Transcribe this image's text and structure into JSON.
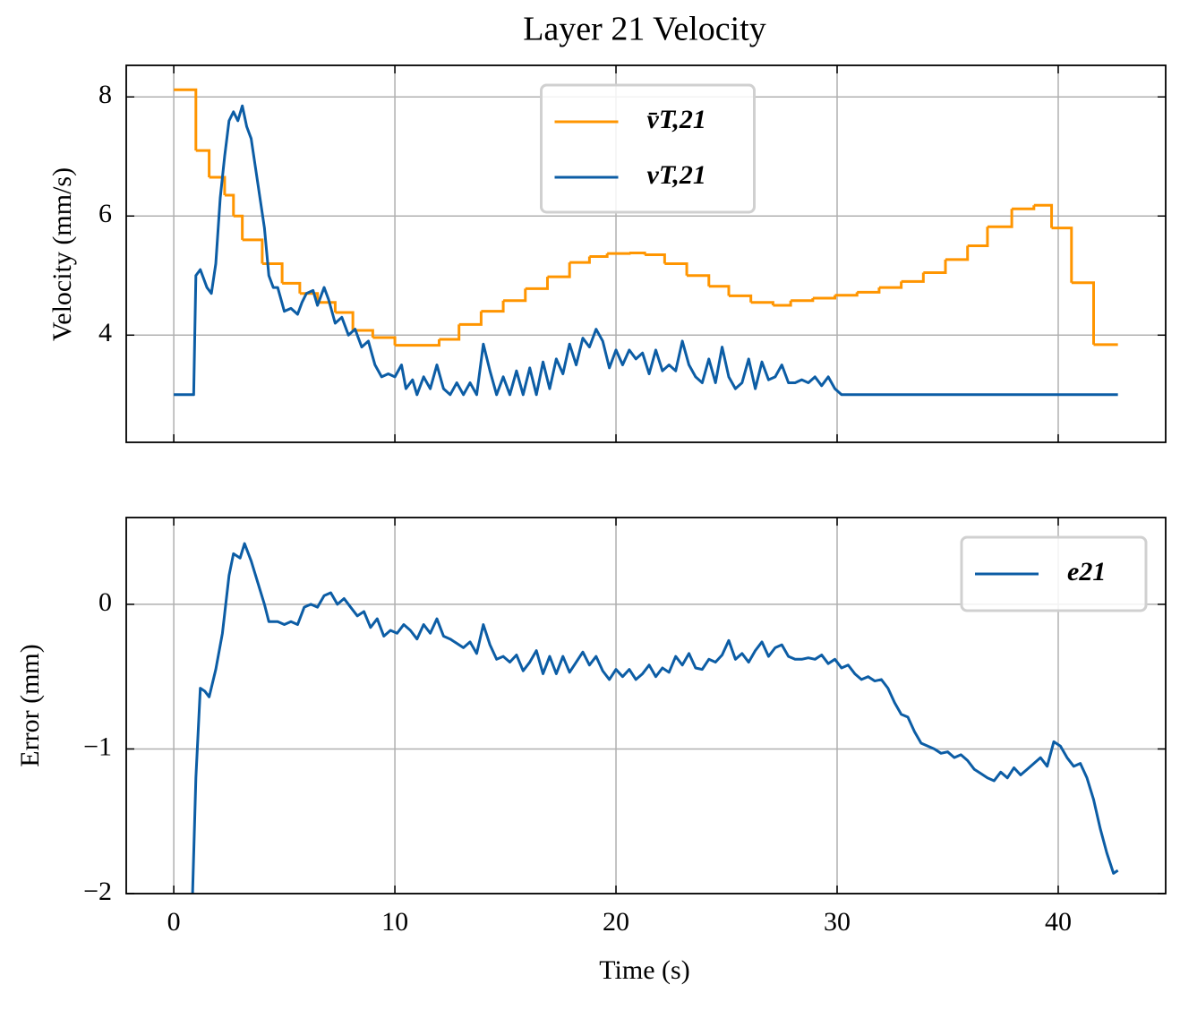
{
  "chart_data": [
    {
      "type": "line",
      "title": "Layer 21 Velocity",
      "ylabel": "Velocity (mm/s)",
      "xlim": [
        -2.15,
        44.86
      ],
      "ylim": [
        2.2,
        8.53
      ],
      "xticks": [
        0,
        10,
        20,
        30,
        40
      ],
      "yticks": [
        4,
        6,
        8
      ],
      "grid": true,
      "legend": "upper center",
      "series": [
        {
          "name": "v̄T,21",
          "color": "#ff9500",
          "step": "post",
          "x": [
            0,
            1.0,
            1.6,
            2.3,
            2.7,
            3.1,
            4.0,
            4.9,
            5.7,
            6.5,
            7.3,
            8.1,
            9.0,
            10.0,
            12.0,
            12.9,
            13.9,
            14.9,
            15.9,
            16.9,
            17.9,
            18.8,
            19.6,
            20.6,
            21.3,
            22.2,
            23.2,
            24.2,
            25.1,
            26.1,
            27.1,
            27.9,
            28.9,
            29.9,
            30.9,
            31.9,
            32.9,
            33.9,
            34.9,
            35.9,
            36.8,
            37.9,
            38.9,
            39.7,
            40.6,
            41.6,
            42.7
          ],
          "values": [
            8.12,
            7.1,
            6.65,
            6.35,
            6.0,
            5.6,
            5.2,
            4.87,
            4.7,
            4.55,
            4.38,
            4.08,
            3.96,
            3.83,
            3.93,
            4.18,
            4.4,
            4.58,
            4.78,
            4.98,
            5.22,
            5.32,
            5.37,
            5.38,
            5.35,
            5.2,
            5.0,
            4.82,
            4.66,
            4.55,
            4.5,
            4.58,
            4.62,
            4.67,
            4.72,
            4.8,
            4.9,
            5.05,
            5.27,
            5.5,
            5.82,
            6.12,
            6.18,
            5.8,
            4.88,
            3.84,
            3.84
          ]
        },
        {
          "name": "vT,21",
          "color": "#0c5da5",
          "x": [
            0,
            0.9,
            1.0,
            1.2,
            1.5,
            1.7,
            1.9,
            2.1,
            2.3,
            2.5,
            2.7,
            2.9,
            3.1,
            3.3,
            3.5,
            3.7,
            3.9,
            4.1,
            4.3,
            4.5,
            4.7,
            5.0,
            5.3,
            5.6,
            5.8,
            6.0,
            6.3,
            6.5,
            6.8,
            7.0,
            7.3,
            7.6,
            7.9,
            8.2,
            8.5,
            8.8,
            9.1,
            9.4,
            9.7,
            10.0,
            10.3,
            10.5,
            10.8,
            11.0,
            11.3,
            11.6,
            11.9,
            12.2,
            12.5,
            12.8,
            13.1,
            13.4,
            13.7,
            14.0,
            14.3,
            14.6,
            14.9,
            15.2,
            15.5,
            15.8,
            16.1,
            16.4,
            16.7,
            17.0,
            17.3,
            17.6,
            17.9,
            18.2,
            18.5,
            18.8,
            19.1,
            19.4,
            19.7,
            20.0,
            20.3,
            20.6,
            20.9,
            21.2,
            21.5,
            21.8,
            22.1,
            22.4,
            22.7,
            23.0,
            23.3,
            23.6,
            23.9,
            24.2,
            24.5,
            24.8,
            25.1,
            25.4,
            25.7,
            26.0,
            26.3,
            26.6,
            26.9,
            27.2,
            27.5,
            27.8,
            28.1,
            28.4,
            28.7,
            29.0,
            29.3,
            29.6,
            29.9,
            30.2,
            31.0,
            31.8,
            42.7
          ],
          "values": [
            3.0,
            3.0,
            5.0,
            5.1,
            4.8,
            4.7,
            5.2,
            6.3,
            7.0,
            7.6,
            7.75,
            7.6,
            7.85,
            7.5,
            7.3,
            6.8,
            6.3,
            5.8,
            5.0,
            4.8,
            4.8,
            4.4,
            4.45,
            4.35,
            4.55,
            4.7,
            4.75,
            4.5,
            4.8,
            4.6,
            4.2,
            4.3,
            4.0,
            4.1,
            3.8,
            3.9,
            3.5,
            3.3,
            3.35,
            3.3,
            3.5,
            3.1,
            3.25,
            3.0,
            3.3,
            3.1,
            3.5,
            3.1,
            3.0,
            3.2,
            3.0,
            3.2,
            3.0,
            3.85,
            3.4,
            3.0,
            3.3,
            3.0,
            3.4,
            3.0,
            3.45,
            3.0,
            3.55,
            3.1,
            3.6,
            3.35,
            3.85,
            3.5,
            3.95,
            3.8,
            4.1,
            3.9,
            3.45,
            3.75,
            3.5,
            3.75,
            3.6,
            3.7,
            3.35,
            3.75,
            3.4,
            3.5,
            3.4,
            3.9,
            3.5,
            3.3,
            3.2,
            3.6,
            3.2,
            3.8,
            3.3,
            3.1,
            3.2,
            3.6,
            3.1,
            3.55,
            3.25,
            3.3,
            3.5,
            3.2,
            3.2,
            3.25,
            3.2,
            3.3,
            3.15,
            3.3,
            3.1,
            3.0,
            3.0,
            3.0,
            3.0
          ]
        }
      ]
    },
    {
      "type": "line",
      "xlabel": "Time (s)",
      "ylabel": "Error (mm)",
      "xlim": [
        -2.15,
        44.86
      ],
      "ylim": [
        -2,
        0.6
      ],
      "xticks": [
        0,
        10,
        20,
        30,
        40
      ],
      "yticks": [
        {
          "value": -2,
          "label": "−2"
        },
        {
          "value": -1,
          "label": "−1"
        },
        0
      ],
      "grid": true,
      "legend": "upper right",
      "series": [
        {
          "name": "e21",
          "color": "#0c5da5",
          "x": [
            0.85,
            1.0,
            1.2,
            1.4,
            1.6,
            1.9,
            2.2,
            2.5,
            2.7,
            3.0,
            3.2,
            3.5,
            3.8,
            4.1,
            4.3,
            4.7,
            5.0,
            5.3,
            5.6,
            5.9,
            6.2,
            6.5,
            6.8,
            7.1,
            7.4,
            7.7,
            8.0,
            8.3,
            8.6,
            8.9,
            9.2,
            9.5,
            9.8,
            10.1,
            10.4,
            10.7,
            11.0,
            11.3,
            11.6,
            11.9,
            12.2,
            12.5,
            12.8,
            13.1,
            13.4,
            13.7,
            14.0,
            14.3,
            14.6,
            14.9,
            15.2,
            15.5,
            15.8,
            16.1,
            16.4,
            16.7,
            17.0,
            17.3,
            17.6,
            17.9,
            18.2,
            18.5,
            18.8,
            19.1,
            19.4,
            19.7,
            20.0,
            20.3,
            20.6,
            20.9,
            21.2,
            21.5,
            21.8,
            22.1,
            22.4,
            22.7,
            23.0,
            23.3,
            23.6,
            23.9,
            24.2,
            24.5,
            24.8,
            25.1,
            25.4,
            25.7,
            26.0,
            26.3,
            26.6,
            26.9,
            27.2,
            27.5,
            27.8,
            28.1,
            28.4,
            28.7,
            29.0,
            29.3,
            29.6,
            29.9,
            30.2,
            30.5,
            30.8,
            31.1,
            31.4,
            31.7,
            32.0,
            32.3,
            32.6,
            32.9,
            33.2,
            33.5,
            33.8,
            34.1,
            34.4,
            34.7,
            35.0,
            35.3,
            35.6,
            35.9,
            36.2,
            36.5,
            36.8,
            37.1,
            37.4,
            37.7,
            38.0,
            38.3,
            38.6,
            38.9,
            39.2,
            39.5,
            39.8,
            40.1,
            40.4,
            40.7,
            41.0,
            41.3,
            41.6,
            41.9,
            42.2,
            42.5,
            42.7
          ],
          "values": [
            -2.0,
            -1.2,
            -0.58,
            -0.6,
            -0.64,
            -0.45,
            -0.2,
            0.2,
            0.35,
            0.32,
            0.42,
            0.3,
            0.15,
            0.0,
            -0.12,
            -0.12,
            -0.14,
            -0.12,
            -0.14,
            -0.02,
            0.0,
            -0.02,
            0.06,
            0.08,
            0.0,
            0.04,
            -0.02,
            -0.08,
            -0.05,
            -0.16,
            -0.1,
            -0.22,
            -0.18,
            -0.2,
            -0.14,
            -0.18,
            -0.24,
            -0.14,
            -0.2,
            -0.1,
            -0.22,
            -0.24,
            -0.27,
            -0.3,
            -0.26,
            -0.34,
            -0.14,
            -0.28,
            -0.38,
            -0.36,
            -0.4,
            -0.35,
            -0.46,
            -0.4,
            -0.32,
            -0.48,
            -0.36,
            -0.48,
            -0.36,
            -0.47,
            -0.4,
            -0.33,
            -0.42,
            -0.36,
            -0.46,
            -0.52,
            -0.45,
            -0.5,
            -0.45,
            -0.52,
            -0.48,
            -0.42,
            -0.5,
            -0.44,
            -0.47,
            -0.36,
            -0.42,
            -0.34,
            -0.44,
            -0.45,
            -0.38,
            -0.4,
            -0.35,
            -0.25,
            -0.38,
            -0.34,
            -0.4,
            -0.32,
            -0.26,
            -0.36,
            -0.3,
            -0.28,
            -0.36,
            -0.38,
            -0.38,
            -0.37,
            -0.38,
            -0.35,
            -0.41,
            -0.38,
            -0.44,
            -0.42,
            -0.48,
            -0.52,
            -0.5,
            -0.53,
            -0.52,
            -0.58,
            -0.68,
            -0.76,
            -0.78,
            -0.88,
            -0.96,
            -0.98,
            -1.0,
            -1.03,
            -1.02,
            -1.06,
            -1.04,
            -1.08,
            -1.14,
            -1.17,
            -1.2,
            -1.22,
            -1.16,
            -1.2,
            -1.13,
            -1.18,
            -1.14,
            -1.1,
            -1.06,
            -1.12,
            -0.95,
            -0.98,
            -1.06,
            -1.12,
            -1.1,
            -1.2,
            -1.35,
            -1.55,
            -1.72,
            -1.86,
            -1.84
          ]
        }
      ]
    }
  ]
}
